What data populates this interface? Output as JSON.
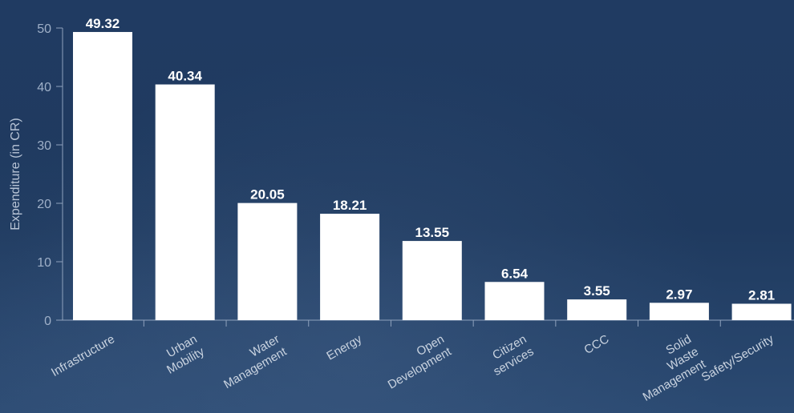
{
  "chart_data": {
    "type": "bar",
    "ylabel": "Expenditure (in CR)",
    "xlabel": "",
    "title": "",
    "ylim": [
      0,
      50
    ],
    "yticks": [
      0,
      10,
      20,
      30,
      40,
      50
    ],
    "grid": false,
    "categories": [
      "Infrastructure",
      "Urban Mobility",
      "Water Management",
      "Energy",
      "Open Development",
      "Citizen services",
      "CCC",
      "Solid Waste Management",
      "Safety/Security"
    ],
    "values": [
      49.32,
      40.34,
      20.05,
      18.21,
      13.55,
      6.54,
      3.55,
      2.97,
      2.81
    ],
    "value_labels": [
      "49.32",
      "40.34",
      "20.05",
      "18.21",
      "13.55",
      "6.54",
      "3.55",
      "2.97",
      "2.81"
    ],
    "bar_color": "#ffffff",
    "background_color": "#1f3a5f"
  }
}
